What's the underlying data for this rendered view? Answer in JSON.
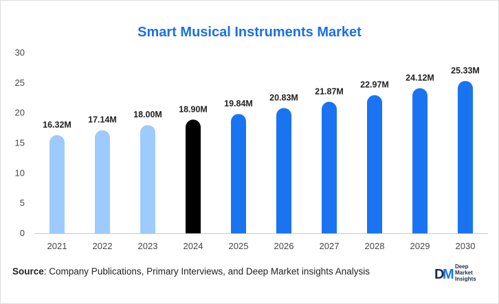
{
  "chart_data": {
    "type": "bar",
    "title": "Smart Musical Instruments Market",
    "categories": [
      "2021",
      "2022",
      "2023",
      "2024",
      "2025",
      "2026",
      "2027",
      "2028",
      "2029",
      "2030"
    ],
    "values": [
      16.32,
      17.14,
      18.0,
      18.9,
      19.84,
      20.83,
      21.87,
      22.97,
      24.12,
      25.33
    ],
    "data_labels": [
      "16.32M",
      "17.14M",
      "18.00M",
      "18.90M",
      "19.84M",
      "20.83M",
      "21.87M",
      "22.97M",
      "24.12M",
      "25.33M"
    ],
    "ylim": [
      0,
      30
    ],
    "yticks": [
      0,
      5,
      10,
      15,
      20,
      25,
      30
    ],
    "xlabel": "",
    "ylabel": "",
    "grid": false,
    "bar_colors": [
      "#9ecbff",
      "#9ecbff",
      "#9ecbff",
      "#000000",
      "#1a73f0",
      "#1a73f0",
      "#1a73f0",
      "#1a73f0",
      "#1a73f0",
      "#1a73f0"
    ]
  },
  "source": {
    "label": "Source",
    "text": ": Company Publications, Primary Interviews, and Deep Market insights Analysis"
  },
  "logo": {
    "mark": "DM",
    "line1": "Deep",
    "line2": "Market",
    "line3": "Insights",
    "colors": {
      "d": "#1b2a4a",
      "m": "#1a73f0"
    }
  }
}
